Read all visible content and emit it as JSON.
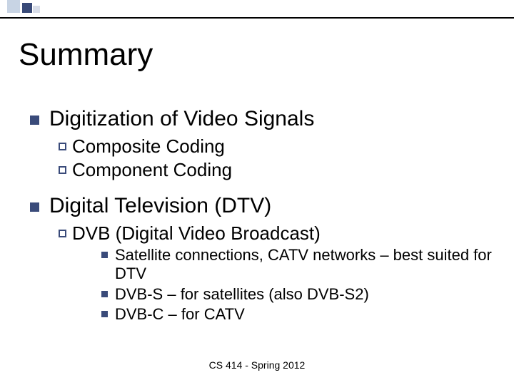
{
  "slide": {
    "title": "Summary",
    "footer": "CS 414 - Spring 2012",
    "decor_colors": [
      "#c8d4e4",
      "#394a78",
      "#d8dde8"
    ],
    "bullet_color": "#3a4b7a",
    "sections": [
      {
        "label": "Digitization of Video Signals",
        "children": [
          {
            "label": "Composite Coding"
          },
          {
            "label": "Component Coding"
          }
        ]
      },
      {
        "label": "Digital Television (DTV)",
        "children": [
          {
            "label": "DVB (Digital Video Broadcast)",
            "children": [
              {
                "label": "Satellite connections,  CATV networks – best suited for DTV"
              },
              {
                "label": "DVB-S – for satellites (also DVB-S2)"
              },
              {
                "label": "DVB-C – for CATV"
              }
            ]
          }
        ]
      }
    ]
  }
}
